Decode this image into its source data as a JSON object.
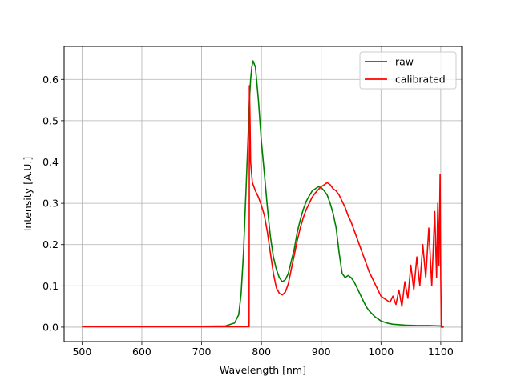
{
  "chart_data": {
    "type": "line",
    "xlabel": "Wavelength [nm]",
    "ylabel": "Intensity [A.U.]",
    "xlim": [
      470,
      1135
    ],
    "ylim": [
      -0.035,
      0.68
    ],
    "x_ticks": [
      500,
      600,
      700,
      800,
      900,
      1000,
      1100
    ],
    "y_ticks": [
      0.0,
      0.1,
      0.2,
      0.3,
      0.4,
      0.5,
      0.6
    ],
    "grid": true,
    "legend_position": "top-right",
    "series": [
      {
        "name": "raw",
        "color": "#008000",
        "x": [
          500,
          550,
          600,
          650,
          700,
          740,
          755,
          762,
          766,
          770,
          774,
          778,
          780,
          782,
          784,
          786,
          790,
          795,
          800,
          805,
          810,
          815,
          820,
          825,
          830,
          835,
          840,
          845,
          850,
          855,
          860,
          865,
          870,
          875,
          880,
          885,
          890,
          895,
          900,
          905,
          910,
          915,
          920,
          925,
          930,
          935,
          940,
          945,
          950,
          955,
          960,
          965,
          970,
          975,
          980,
          990,
          1000,
          1010,
          1020,
          1040,
          1060,
          1080,
          1100,
          1105
        ],
        "y": [
          0.002,
          0.002,
          0.002,
          0.002,
          0.002,
          0.003,
          0.01,
          0.03,
          0.08,
          0.18,
          0.32,
          0.47,
          0.55,
          0.6,
          0.63,
          0.645,
          0.63,
          0.55,
          0.45,
          0.37,
          0.29,
          0.22,
          0.17,
          0.14,
          0.12,
          0.11,
          0.115,
          0.13,
          0.16,
          0.19,
          0.23,
          0.26,
          0.285,
          0.305,
          0.318,
          0.33,
          0.335,
          0.34,
          0.338,
          0.33,
          0.32,
          0.3,
          0.275,
          0.24,
          0.18,
          0.13,
          0.12,
          0.125,
          0.12,
          0.11,
          0.095,
          0.08,
          0.065,
          0.05,
          0.04,
          0.025,
          0.015,
          0.01,
          0.007,
          0.005,
          0.004,
          0.004,
          0.003,
          0.0
        ]
      },
      {
        "name": "calibrated",
        "color": "#ff0000",
        "x": [
          500,
          550,
          600,
          650,
          700,
          750,
          779.5,
          780,
          781,
          782,
          785,
          790,
          795,
          800,
          805,
          810,
          815,
          820,
          825,
          830,
          835,
          840,
          845,
          850,
          855,
          860,
          865,
          870,
          875,
          880,
          885,
          890,
          895,
          900,
          905,
          910,
          915,
          920,
          925,
          930,
          935,
          940,
          945,
          950,
          955,
          960,
          965,
          970,
          975,
          980,
          985,
          990,
          995,
          1000,
          1005,
          1010,
          1015,
          1020,
          1025,
          1030,
          1035,
          1040,
          1045,
          1050,
          1055,
          1060,
          1065,
          1070,
          1075,
          1080,
          1085,
          1090,
          1093,
          1095,
          1097,
          1099,
          1100,
          1101,
          1105
        ],
        "y": [
          0.001,
          0.001,
          0.001,
          0.001,
          0.001,
          0.001,
          0.001,
          0.585,
          0.5,
          0.4,
          0.35,
          0.33,
          0.315,
          0.295,
          0.27,
          0.23,
          0.18,
          0.13,
          0.095,
          0.082,
          0.078,
          0.085,
          0.105,
          0.14,
          0.175,
          0.21,
          0.24,
          0.265,
          0.285,
          0.3,
          0.315,
          0.325,
          0.333,
          0.34,
          0.345,
          0.35,
          0.345,
          0.335,
          0.33,
          0.32,
          0.305,
          0.29,
          0.27,
          0.255,
          0.235,
          0.215,
          0.195,
          0.175,
          0.155,
          0.135,
          0.12,
          0.105,
          0.09,
          0.075,
          0.07,
          0.065,
          0.06,
          0.075,
          0.055,
          0.09,
          0.05,
          0.11,
          0.07,
          0.15,
          0.09,
          0.17,
          0.1,
          0.2,
          0.12,
          0.24,
          0.1,
          0.28,
          0.12,
          0.3,
          0.15,
          0.37,
          0.12,
          0.0,
          0.0
        ]
      }
    ]
  }
}
